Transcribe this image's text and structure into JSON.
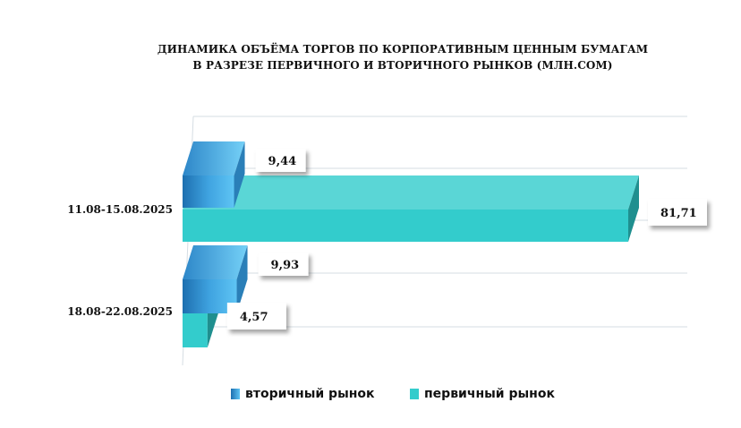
{
  "chart_data": {
    "type": "bar",
    "orientation": "horizontal",
    "title": [
      "ДИНАМИКА ОБЪЁМА ТОРГОВ ПО КОРПОРАТИВНЫМ ЦЕННЫМ БУМАГАМ",
      "В РАЗРЕЗЕ ПЕРВИЧНОГО И ВТОРИЧНОГО РЫНКОВ  (МЛН.СОМ)"
    ],
    "categories": [
      "11.08-15.08.2025",
      "18.08-22.08.2025"
    ],
    "series": [
      {
        "name": "вторичный рынок",
        "values": [
          9.44,
          9.93
        ],
        "labels": [
          "9,44",
          "9,93"
        ],
        "color": "#3a9fd8"
      },
      {
        "name": "первичный рынок",
        "values": [
          81.71,
          4.57
        ],
        "labels": [
          "81,71",
          "4,57"
        ],
        "color": "#33cccc"
      }
    ],
    "xlim": [
      0,
      90
    ],
    "grid": true,
    "legend_position": "bottom",
    "style": "3d"
  }
}
